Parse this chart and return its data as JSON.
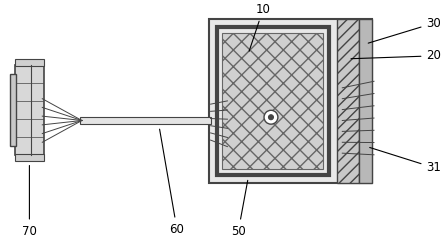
{
  "figsize": [
    4.44,
    2.45
  ],
  "dpi": 100,
  "lc": "#444444",
  "box_face": "#e8e8e8",
  "hatch_face": "#d0d0d0",
  "right_strip_face": "#c8c8c8",
  "shaft_face": "#e4e4e4",
  "conn_face": "#d8d8d8",
  "label_fontsize": 8.5
}
